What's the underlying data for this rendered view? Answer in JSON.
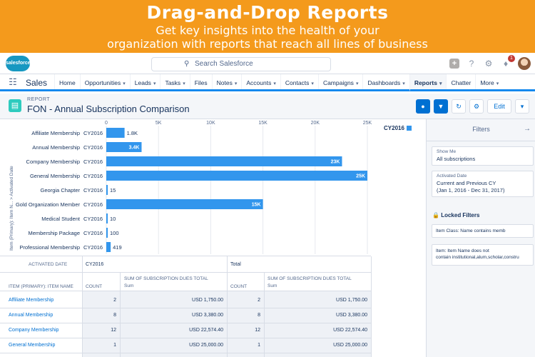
{
  "banner": {
    "title": "Drag-and-Drop Reports",
    "subtitle_line1": "Get key insights into the health of your",
    "subtitle_line2": "organization with reports that reach all lines of business"
  },
  "header": {
    "logo_text": "salesforce",
    "search_placeholder": "Search Salesforce",
    "notification_count": "1"
  },
  "nav": {
    "app_name": "Sales",
    "items": [
      {
        "label": "Home",
        "caret": false
      },
      {
        "label": "Opportunities",
        "caret": true
      },
      {
        "label": "Leads",
        "caret": true
      },
      {
        "label": "Tasks",
        "caret": true
      },
      {
        "label": "Files",
        "caret": false
      },
      {
        "label": "Notes",
        "caret": true
      },
      {
        "label": "Accounts",
        "caret": true
      },
      {
        "label": "Contacts",
        "caret": true
      },
      {
        "label": "Campaigns",
        "caret": true
      },
      {
        "label": "Dashboards",
        "caret": true
      },
      {
        "label": "Reports",
        "caret": true,
        "active": true
      },
      {
        "label": "Chatter",
        "caret": false
      },
      {
        "label": "More",
        "caret": true
      }
    ]
  },
  "report": {
    "label": "REPORT",
    "title": "FON - Annual Subscription Comparison",
    "edit_label": "Edit"
  },
  "chart_data": {
    "type": "bar",
    "orientation": "horizontal",
    "title": "",
    "ylabel": "Item (Primary): Item N... > Activated Date",
    "xlabel": "",
    "xlim": [
      0,
      25000
    ],
    "xticks": [
      "0",
      "5K",
      "10K",
      "15K",
      "20K",
      "25K"
    ],
    "legend": [
      "CY2016"
    ],
    "categories": [
      "Affiliate Membership",
      "Annual Membership",
      "Company Membership",
      "General Membership",
      "Georgia Chapter",
      "Gold Organization Member",
      "Medical Student",
      "Membership Package",
      "Professional Membership"
    ],
    "series": [
      {
        "name": "CY2016",
        "values": [
          1750,
          3380,
          22574,
          25000,
          15,
          15000,
          10,
          100,
          419
        ],
        "labels": [
          "1.8K",
          "3.4K",
          "23K",
          "25K",
          "15",
          "15K",
          "10",
          "100",
          "419"
        ]
      }
    ]
  },
  "filters": {
    "title": "Filters",
    "show_me_label": "Show Me",
    "show_me_value": "All subscriptions",
    "activated_label": "Activated Date",
    "activated_value1": "Current and Previous CY",
    "activated_value2": "(Jan 1, 2016 - Dec 31, 2017)",
    "locked_title": "Locked Filters",
    "locked1": "Item Class: Name contains memb",
    "locked2a": "Item: Item Name does not",
    "locked2b": "contain institutional,alum,scholar,constru"
  },
  "table": {
    "h_activated": "ACTIVATED DATE",
    "h_cy": "CY2016",
    "h_total": "Total",
    "h_item": "ITEM (PRIMARY): ITEM NAME",
    "h_count": "COUNT",
    "h_sum_a": "SUM OF SUBSCRIPTION DUES TOTAL",
    "h_sum_b": "Sum",
    "rows": [
      {
        "name": "Affiliate Membership",
        "count": "2",
        "sum": "USD 1,750.00",
        "tcount": "2",
        "tsum": "USD 1,750.00"
      },
      {
        "name": "Annual Membership",
        "count": "8",
        "sum": "USD 3,380.00",
        "tcount": "8",
        "tsum": "USD 3,380.00"
      },
      {
        "name": "Company Membership",
        "count": "12",
        "sum": "USD 22,574.40",
        "tcount": "12",
        "tsum": "USD 22,574.40"
      },
      {
        "name": "General Membership",
        "count": "1",
        "sum": "USD 25,000.00",
        "tcount": "1",
        "tsum": "USD 25,000.00"
      }
    ]
  },
  "colors": {
    "accent": "#0070d2",
    "bar": "#3296ed",
    "banner": "#f49a1c"
  }
}
